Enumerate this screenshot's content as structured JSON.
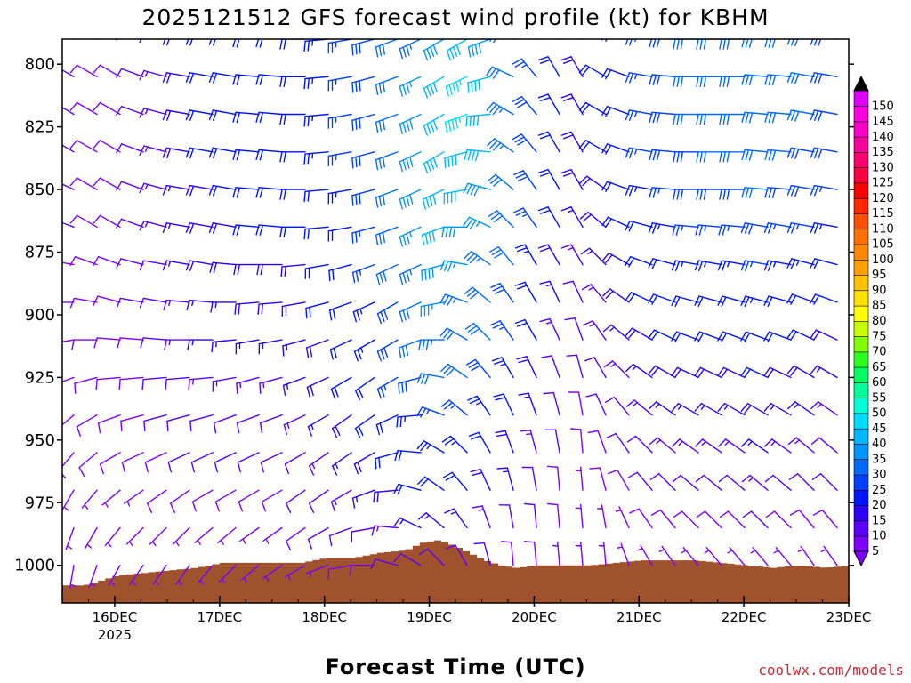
{
  "chart_data": {
    "type": "wind-barb-profile",
    "title": "2025121512 GFS forecast wind profile (kt) for KBHM",
    "xlabel": "Forecast Time (UTC)",
    "ylabel": "",
    "x_ticks": [
      {
        "label": "16DEC",
        "sub": "2025"
      },
      {
        "label": "17DEC",
        "sub": ""
      },
      {
        "label": "18DEC",
        "sub": ""
      },
      {
        "label": "19DEC",
        "sub": ""
      },
      {
        "label": "20DEC",
        "sub": ""
      },
      {
        "label": "21DEC",
        "sub": ""
      },
      {
        "label": "22DEC",
        "sub": ""
      },
      {
        "label": "23DEC",
        "sub": ""
      }
    ],
    "x_range_days": [
      15.5,
      23.0
    ],
    "y_ticks": [
      800,
      825,
      850,
      875,
      900,
      925,
      950,
      975,
      1000
    ],
    "y_range_hpa": [
      790,
      1015
    ],
    "pressure_levels": [
      790,
      805,
      820,
      835,
      850,
      865,
      880,
      895,
      910,
      925,
      940,
      955,
      970,
      985,
      1000
    ],
    "colorbar": {
      "levels": [
        5,
        10,
        15,
        20,
        25,
        30,
        35,
        40,
        45,
        50,
        55,
        60,
        65,
        70,
        75,
        80,
        85,
        90,
        95,
        100,
        105,
        110,
        115,
        120,
        125,
        130,
        135,
        140,
        145,
        150
      ],
      "colors": [
        "#7f00ff",
        "#5a00ff",
        "#2d00ff",
        "#0014ff",
        "#0040ff",
        "#006cff",
        "#0096ff",
        "#00b8ff",
        "#00dcff",
        "#00ffd8",
        "#00ff9c",
        "#00ff60",
        "#2aff20",
        "#80ff00",
        "#c8ff00",
        "#ffff00",
        "#ffe000",
        "#ffc000",
        "#ffa000",
        "#ff8800",
        "#ff7000",
        "#ff5000",
        "#ff2800",
        "#ff0000",
        "#ff0040",
        "#ff0070",
        "#ff00a0",
        "#ff00c8",
        "#ff00e0",
        "#e000ff"
      ]
    },
    "terrain_color": "#a0522d",
    "surface_pressure": [
      {
        "t": 15.5,
        "p": 1008
      },
      {
        "t": 15.68,
        "p": 1008
      },
      {
        "t": 15.85,
        "p": 1006
      },
      {
        "t": 16.0,
        "p": 1004
      },
      {
        "t": 16.25,
        "p": 1003
      },
      {
        "t": 16.5,
        "p": 1002
      },
      {
        "t": 16.75,
        "p": 1001
      },
      {
        "t": 17.0,
        "p": 999
      },
      {
        "t": 17.25,
        "p": 999
      },
      {
        "t": 17.5,
        "p": 999
      },
      {
        "t": 17.75,
        "p": 999
      },
      {
        "t": 18.0,
        "p": 997
      },
      {
        "t": 18.25,
        "p": 997
      },
      {
        "t": 18.5,
        "p": 995
      },
      {
        "t": 18.75,
        "p": 994
      },
      {
        "t": 18.9,
        "p": 991
      },
      {
        "t": 19.05,
        "p": 990
      },
      {
        "t": 19.2,
        "p": 992
      },
      {
        "t": 19.35,
        "p": 995
      },
      {
        "t": 19.5,
        "p": 998
      },
      {
        "t": 19.65,
        "p": 1000
      },
      {
        "t": 19.8,
        "p": 1001
      },
      {
        "t": 20.0,
        "p": 1000
      },
      {
        "t": 20.25,
        "p": 1000
      },
      {
        "t": 20.5,
        "p": 1000
      },
      {
        "t": 20.75,
        "p": 999
      },
      {
        "t": 21.0,
        "p": 998
      },
      {
        "t": 21.25,
        "p": 998
      },
      {
        "t": 21.5,
        "p": 998
      },
      {
        "t": 21.75,
        "p": 999
      },
      {
        "t": 22.0,
        "p": 1000
      },
      {
        "t": 22.25,
        "p": 1001
      },
      {
        "t": 22.5,
        "p": 1000
      },
      {
        "t": 22.75,
        "p": 1001
      },
      {
        "t": 23.0,
        "p": 1000
      }
    ],
    "wind_speed_kt": [
      [
        10,
        8,
        8,
        10,
        14,
        18,
        20,
        20,
        22,
        22,
        22,
        24,
        26,
        28,
        30,
        34,
        38,
        40,
        38,
        30,
        25,
        20,
        18,
        20,
        22,
        25,
        28,
        30,
        30,
        30,
        32,
        30,
        30,
        28
      ],
      [
        10,
        8,
        8,
        10,
        14,
        18,
        20,
        20,
        22,
        22,
        22,
        24,
        26,
        28,
        30,
        36,
        40,
        45,
        40,
        32,
        26,
        22,
        18,
        20,
        22,
        25,
        28,
        30,
        30,
        30,
        32,
        30,
        30,
        28
      ],
      [
        10,
        8,
        8,
        10,
        14,
        18,
        20,
        20,
        22,
        22,
        22,
        24,
        26,
        28,
        32,
        38,
        42,
        45,
        42,
        34,
        28,
        22,
        18,
        20,
        22,
        25,
        28,
        30,
        30,
        30,
        32,
        30,
        30,
        28
      ],
      [
        10,
        8,
        8,
        10,
        14,
        18,
        20,
        20,
        22,
        22,
        22,
        24,
        26,
        28,
        32,
        38,
        42,
        42,
        40,
        34,
        28,
        22,
        18,
        20,
        22,
        25,
        28,
        28,
        30,
        30,
        30,
        30,
        28,
        28
      ],
      [
        10,
        8,
        8,
        10,
        14,
        16,
        18,
        20,
        20,
        20,
        20,
        22,
        24,
        28,
        32,
        38,
        42,
        40,
        38,
        32,
        28,
        22,
        18,
        18,
        22,
        24,
        26,
        28,
        28,
        28,
        30,
        28,
        28,
        26
      ],
      [
        10,
        8,
        8,
        10,
        14,
        16,
        18,
        18,
        20,
        20,
        20,
        20,
        22,
        26,
        30,
        36,
        40,
        38,
        36,
        32,
        26,
        20,
        16,
        18,
        20,
        22,
        24,
        26,
        26,
        26,
        28,
        26,
        26,
        24
      ],
      [
        8,
        8,
        8,
        10,
        12,
        16,
        18,
        18,
        18,
        18,
        18,
        20,
        22,
        26,
        30,
        34,
        38,
        36,
        34,
        30,
        24,
        18,
        14,
        16,
        18,
        20,
        22,
        24,
        24,
        24,
        26,
        24,
        24,
        22
      ],
      [
        8,
        8,
        8,
        10,
        12,
        14,
        16,
        16,
        18,
        18,
        18,
        20,
        22,
        24,
        28,
        32,
        36,
        34,
        32,
        28,
        22,
        16,
        12,
        14,
        18,
        20,
        22,
        22,
        22,
        22,
        24,
        22,
        22,
        20
      ],
      [
        8,
        8,
        8,
        8,
        10,
        14,
        16,
        16,
        16,
        16,
        16,
        18,
        20,
        24,
        28,
        30,
        34,
        32,
        30,
        26,
        20,
        14,
        10,
        14,
        16,
        18,
        20,
        20,
        20,
        20,
        22,
        20,
        20,
        18
      ],
      [
        8,
        8,
        8,
        8,
        10,
        12,
        14,
        14,
        14,
        14,
        16,
        18,
        20,
        22,
        26,
        28,
        30,
        30,
        28,
        24,
        18,
        12,
        10,
        12,
        14,
        16,
        18,
        18,
        18,
        18,
        20,
        18,
        18,
        16
      ],
      [
        8,
        8,
        8,
        8,
        10,
        12,
        12,
        12,
        12,
        12,
        14,
        16,
        18,
        20,
        22,
        24,
        26,
        26,
        24,
        20,
        16,
        12,
        8,
        10,
        12,
        14,
        16,
        16,
        16,
        16,
        18,
        16,
        16,
        14
      ],
      [
        8,
        8,
        8,
        8,
        8,
        10,
        10,
        10,
        10,
        10,
        12,
        14,
        16,
        18,
        20,
        22,
        24,
        24,
        22,
        18,
        14,
        10,
        8,
        8,
        10,
        12,
        14,
        14,
        14,
        14,
        16,
        14,
        14,
        12
      ],
      [
        6,
        6,
        6,
        6,
        8,
        8,
        8,
        8,
        8,
        8,
        10,
        12,
        14,
        16,
        18,
        20,
        20,
        20,
        18,
        16,
        12,
        8,
        6,
        8,
        8,
        10,
        12,
        12,
        12,
        12,
        14,
        12,
        12,
        10
      ],
      [
        6,
        6,
        6,
        6,
        6,
        6,
        6,
        6,
        6,
        6,
        8,
        10,
        12,
        12,
        14,
        16,
        16,
        16,
        14,
        12,
        10,
        8,
        6,
        6,
        6,
        8,
        8,
        8,
        8,
        8,
        10,
        8,
        8,
        8
      ],
      [
        5,
        5,
        5,
        5,
        5,
        5,
        5,
        5,
        5,
        5,
        6,
        6,
        8,
        8,
        10,
        10,
        10,
        10,
        10,
        8,
        8,
        6,
        5,
        5,
        5,
        6,
        6,
        6,
        6,
        6,
        6,
        6,
        6,
        6
      ]
    ],
    "wind_dir_deg": [
      [
        300,
        300,
        300,
        290,
        285,
        280,
        280,
        280,
        275,
        275,
        270,
        265,
        260,
        255,
        250,
        245,
        240,
        240,
        250,
        290,
        320,
        330,
        330,
        300,
        290,
        280,
        275,
        270,
        270,
        270,
        275,
        275,
        280,
        280
      ],
      [
        300,
        300,
        300,
        290,
        285,
        280,
        280,
        280,
        275,
        275,
        270,
        265,
        260,
        255,
        250,
        245,
        240,
        245,
        255,
        295,
        320,
        330,
        330,
        300,
        290,
        280,
        275,
        270,
        270,
        270,
        275,
        275,
        280,
        280
      ],
      [
        300,
        300,
        300,
        290,
        285,
        280,
        280,
        280,
        275,
        275,
        270,
        265,
        260,
        255,
        250,
        245,
        240,
        250,
        265,
        300,
        320,
        330,
        330,
        300,
        290,
        280,
        275,
        270,
        270,
        270,
        275,
        275,
        280,
        280
      ],
      [
        300,
        300,
        300,
        290,
        285,
        280,
        280,
        280,
        275,
        275,
        270,
        265,
        260,
        255,
        250,
        245,
        240,
        255,
        275,
        305,
        320,
        330,
        330,
        300,
        290,
        280,
        275,
        270,
        270,
        270,
        275,
        275,
        280,
        280
      ],
      [
        295,
        300,
        300,
        290,
        285,
        280,
        280,
        280,
        275,
        275,
        270,
        265,
        260,
        255,
        250,
        245,
        245,
        260,
        285,
        310,
        325,
        330,
        330,
        305,
        290,
        280,
        275,
        270,
        270,
        270,
        275,
        275,
        280,
        280
      ],
      [
        290,
        300,
        300,
        290,
        285,
        280,
        280,
        280,
        275,
        275,
        270,
        265,
        260,
        255,
        250,
        245,
        250,
        270,
        295,
        315,
        325,
        330,
        330,
        310,
        295,
        285,
        280,
        275,
        275,
        275,
        280,
        280,
        280,
        280
      ],
      [
        280,
        290,
        290,
        285,
        280,
        280,
        280,
        275,
        270,
        270,
        265,
        260,
        255,
        250,
        245,
        245,
        255,
        280,
        305,
        320,
        330,
        330,
        330,
        315,
        300,
        290,
        285,
        280,
        280,
        280,
        280,
        280,
        285,
        285
      ],
      [
        270,
        280,
        285,
        280,
        280,
        275,
        275,
        270,
        265,
        265,
        260,
        255,
        250,
        245,
        240,
        245,
        260,
        290,
        310,
        325,
        330,
        335,
        335,
        320,
        305,
        295,
        290,
        285,
        285,
        285,
        285,
        285,
        290,
        290
      ],
      [
        260,
        270,
        275,
        275,
        275,
        270,
        270,
        265,
        260,
        260,
        255,
        250,
        245,
        240,
        240,
        250,
        270,
        300,
        315,
        325,
        330,
        335,
        340,
        325,
        310,
        300,
        295,
        290,
        290,
        290,
        290,
        290,
        295,
        295
      ],
      [
        250,
        255,
        265,
        265,
        265,
        265,
        265,
        260,
        255,
        255,
        250,
        245,
        240,
        235,
        240,
        255,
        280,
        305,
        320,
        330,
        335,
        340,
        345,
        330,
        315,
        305,
        300,
        295,
        295,
        295,
        295,
        295,
        300,
        300
      ],
      [
        230,
        240,
        250,
        255,
        255,
        255,
        255,
        250,
        250,
        250,
        245,
        240,
        235,
        235,
        245,
        265,
        290,
        310,
        325,
        335,
        340,
        345,
        350,
        335,
        320,
        310,
        305,
        300,
        300,
        300,
        300,
        300,
        305,
        305
      ],
      [
        220,
        230,
        240,
        245,
        245,
        245,
        245,
        245,
        245,
        245,
        240,
        235,
        235,
        240,
        255,
        275,
        300,
        315,
        330,
        340,
        345,
        350,
        355,
        340,
        325,
        315,
        310,
        305,
        305,
        305,
        305,
        305,
        310,
        310
      ],
      [
        210,
        220,
        230,
        235,
        235,
        235,
        240,
        240,
        240,
        240,
        235,
        235,
        240,
        250,
        265,
        285,
        305,
        320,
        335,
        345,
        350,
        355,
        355,
        345,
        330,
        320,
        315,
        310,
        310,
        310,
        310,
        310,
        315,
        315
      ],
      [
        200,
        210,
        220,
        225,
        225,
        225,
        230,
        230,
        235,
        235,
        235,
        240,
        250,
        260,
        275,
        295,
        310,
        325,
        340,
        350,
        355,
        355,
        355,
        350,
        335,
        325,
        320,
        315,
        315,
        315,
        315,
        315,
        320,
        320
      ],
      [
        190,
        200,
        210,
        215,
        215,
        215,
        220,
        225,
        230,
        235,
        240,
        250,
        260,
        270,
        285,
        300,
        315,
        330,
        345,
        355,
        355,
        355,
        355,
        355,
        340,
        330,
        325,
        320,
        320,
        320,
        320,
        320,
        325,
        325
      ]
    ],
    "credit": "coolwx.com/models"
  }
}
